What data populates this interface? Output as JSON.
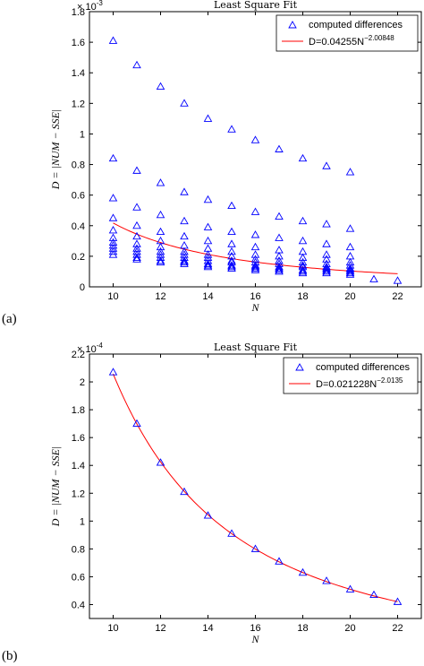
{
  "chart_data": [
    {
      "type": "scatter",
      "panel_label": "(a)",
      "title": "Least Square Fit",
      "xlabel": "N",
      "ylabel": "D = |NUM − SSE|",
      "xlim": [
        9,
        23
      ],
      "ylim": [
        0,
        0.0018
      ],
      "x_ticks": [
        10,
        12,
        14,
        16,
        18,
        20,
        22
      ],
      "y_ticks": [
        0,
        0.2,
        0.4,
        0.6,
        0.8,
        1,
        1.2,
        1.4,
        1.6,
        1.8
      ],
      "y_ticks_text": [
        "0",
        "0.2",
        "0.4",
        "0.6",
        "0.8",
        "1",
        "1.2",
        "1.4",
        "1.6",
        "1.8"
      ],
      "y_exponent": "× 10",
      "y_exponent_power": "-3",
      "legend_position": "top-right",
      "series": [
        {
          "name": "computed differences",
          "marker": "triangle",
          "color": "#0000ff",
          "points": [
            [
              10,
              0.00161
            ],
            [
              10,
              0.00084
            ],
            [
              10,
              0.00058
            ],
            [
              10,
              0.00045
            ],
            [
              10,
              0.00037
            ],
            [
              10,
              0.00032
            ],
            [
              10,
              0.00029
            ],
            [
              10,
              0.00027
            ],
            [
              10,
              0.00025
            ],
            [
              10,
              0.00023
            ],
            [
              10,
              0.00021
            ],
            [
              11,
              0.00145
            ],
            [
              11,
              0.00076
            ],
            [
              11,
              0.00052
            ],
            [
              11,
              0.0004
            ],
            [
              11,
              0.00033
            ],
            [
              11,
              0.00028
            ],
            [
              11,
              0.00025
            ],
            [
              11,
              0.00023
            ],
            [
              11,
              0.00021
            ],
            [
              11,
              0.00019
            ],
            [
              11,
              0.00018
            ],
            [
              12,
              0.00131
            ],
            [
              12,
              0.00068
            ],
            [
              12,
              0.00047
            ],
            [
              12,
              0.00036
            ],
            [
              12,
              0.0003
            ],
            [
              12,
              0.00026
            ],
            [
              12,
              0.00023
            ],
            [
              12,
              0.00021
            ],
            [
              12,
              0.00019
            ],
            [
              12,
              0.00017
            ],
            [
              12,
              0.00016
            ],
            [
              13,
              0.0012
            ],
            [
              13,
              0.00062
            ],
            [
              13,
              0.00043
            ],
            [
              13,
              0.00033
            ],
            [
              13,
              0.00027
            ],
            [
              13,
              0.00023
            ],
            [
              13,
              0.00021
            ],
            [
              13,
              0.00019
            ],
            [
              13,
              0.00017
            ],
            [
              13,
              0.00016
            ],
            [
              13,
              0.00015
            ],
            [
              14,
              0.0011
            ],
            [
              14,
              0.00057
            ],
            [
              14,
              0.00039
            ],
            [
              14,
              0.0003
            ],
            [
              14,
              0.00025
            ],
            [
              14,
              0.00021
            ],
            [
              14,
              0.00019
            ],
            [
              14,
              0.00017
            ],
            [
              14,
              0.00015
            ],
            [
              14,
              0.00014
            ],
            [
              14,
              0.00013
            ],
            [
              15,
              0.00103
            ],
            [
              15,
              0.00053
            ],
            [
              15,
              0.00036
            ],
            [
              15,
              0.00028
            ],
            [
              15,
              0.00023
            ],
            [
              15,
              0.0002
            ],
            [
              15,
              0.00017
            ],
            [
              15,
              0.00016
            ],
            [
              15,
              0.00014
            ],
            [
              15,
              0.00013
            ],
            [
              15,
              0.00012
            ],
            [
              16,
              0.00096
            ],
            [
              16,
              0.00049
            ],
            [
              16,
              0.00034
            ],
            [
              16,
              0.00026
            ],
            [
              16,
              0.00021
            ],
            [
              16,
              0.00018
            ],
            [
              16,
              0.00016
            ],
            [
              16,
              0.00014
            ],
            [
              16,
              0.00013
            ],
            [
              16,
              0.00012
            ],
            [
              16,
              0.00011
            ],
            [
              17,
              0.0009
            ],
            [
              17,
              0.00046
            ],
            [
              17,
              0.00032
            ],
            [
              17,
              0.00024
            ],
            [
              17,
              0.0002
            ],
            [
              17,
              0.00017
            ],
            [
              17,
              0.00015
            ],
            [
              17,
              0.00013
            ],
            [
              17,
              0.00012
            ],
            [
              17,
              0.00011
            ],
            [
              17,
              0.0001
            ],
            [
              18,
              0.00084
            ],
            [
              18,
              0.00043
            ],
            [
              18,
              0.0003
            ],
            [
              18,
              0.00023
            ],
            [
              18,
              0.00019
            ],
            [
              18,
              0.00016
            ],
            [
              18,
              0.00014
            ],
            [
              18,
              0.00013
            ],
            [
              18,
              0.00011
            ],
            [
              18,
              0.0001
            ],
            [
              18,
              9e-05
            ],
            [
              19,
              0.00079
            ],
            [
              19,
              0.00041
            ],
            [
              19,
              0.00028
            ],
            [
              19,
              0.00021
            ],
            [
              19,
              0.00018
            ],
            [
              19,
              0.00015
            ],
            [
              19,
              0.00013
            ],
            [
              19,
              0.00012
            ],
            [
              19,
              0.00011
            ],
            [
              19,
              0.0001
            ],
            [
              19,
              9e-05
            ],
            [
              20,
              0.00075
            ],
            [
              20,
              0.00038
            ],
            [
              20,
              0.00026
            ],
            [
              20,
              0.0002
            ],
            [
              20,
              0.00016
            ],
            [
              20,
              0.00014
            ],
            [
              20,
              0.00012
            ],
            [
              20,
              0.00011
            ],
            [
              20,
              0.0001
            ],
            [
              20,
              9e-05
            ],
            [
              20,
              8e-05
            ],
            [
              21,
              5e-05
            ],
            [
              22,
              4e-05
            ]
          ]
        },
        {
          "name": "D=0.04255N",
          "name_exponent": "−2.00848",
          "type": "line",
          "color": "#ff0000",
          "function": {
            "a": 0.04255,
            "b": -2.00848
          },
          "x_range": [
            10,
            22
          ]
        }
      ]
    },
    {
      "type": "scatter",
      "panel_label": "(b)",
      "title": "Least Square Fit",
      "xlabel": "N",
      "ylabel": "D = |NUM − SSE|",
      "xlim": [
        9,
        23
      ],
      "ylim": [
        3e-05,
        0.00022
      ],
      "x_ticks": [
        10,
        12,
        14,
        16,
        18,
        20,
        22
      ],
      "y_ticks": [
        0.4,
        0.6,
        0.8,
        1,
        1.2,
        1.4,
        1.6,
        1.8,
        2,
        2.2
      ],
      "y_ticks_text": [
        "0.4",
        "0.6",
        "0.8",
        "1",
        "1.2",
        "1.4",
        "1.6",
        "1.8",
        "2",
        "2.2"
      ],
      "y_exponent": "× 10",
      "y_exponent_power": "-4",
      "legend_position": "top-right",
      "series": [
        {
          "name": "computed differences",
          "marker": "triangle",
          "color": "#0000ff",
          "points": [
            [
              10,
              0.000207
            ],
            [
              11,
              0.00017
            ],
            [
              12,
              0.000142
            ],
            [
              13,
              0.000121
            ],
            [
              14,
              0.000104
            ],
            [
              15,
              9.1e-05
            ],
            [
              16,
              8e-05
            ],
            [
              17,
              7.1e-05
            ],
            [
              18,
              6.3e-05
            ],
            [
              19,
              5.7e-05
            ],
            [
              20,
              5.1e-05
            ],
            [
              21,
              4.7e-05
            ],
            [
              22,
              4.2e-05
            ]
          ]
        },
        {
          "name": "D=0.021228N",
          "name_exponent": "−2.0135",
          "type": "line",
          "color": "#ff0000",
          "function": {
            "a": 0.021228,
            "b": -2.0135
          },
          "x_range": [
            10,
            22
          ]
        }
      ]
    }
  ]
}
